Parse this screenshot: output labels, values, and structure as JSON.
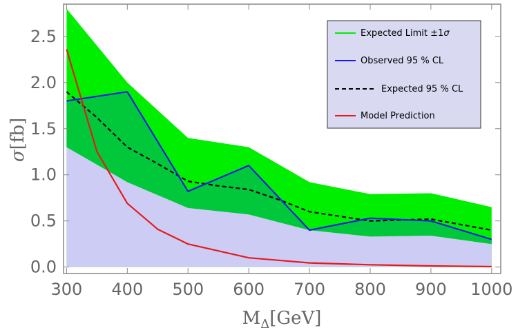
{
  "chart_data": {
    "type": "line",
    "xlabel_main": "M",
    "xlabel_sub": "Δ",
    "xlabel_unit": "[GeV]",
    "ylabel_main": "σ",
    "ylabel_unit": "[fb]",
    "xlim": [
      295,
      1015
    ],
    "ylim": [
      -0.07,
      2.85
    ],
    "x_ticks": [
      300,
      400,
      500,
      600,
      700,
      800,
      900,
      1000
    ],
    "x_tick_labels": [
      "300",
      "400",
      "500",
      "600",
      "700",
      "800",
      "900",
      "1000"
    ],
    "y_ticks": [
      0.0,
      0.5,
      1.0,
      1.5,
      2.0,
      2.5
    ],
    "y_tick_labels": [
      "0.0",
      "0.5",
      "1.0",
      "1.5",
      "2.0",
      "2.5"
    ],
    "legend_position": "top-right",
    "band": {
      "name": "Expected Limit ±1σ",
      "label_text": "Expected Limit ±1",
      "label_symbol": "σ",
      "x": [
        300,
        400,
        500,
        600,
        700,
        800,
        900,
        1000
      ],
      "upper": [
        2.8,
        2.0,
        1.4,
        1.3,
        0.92,
        0.79,
        0.8,
        0.65
      ],
      "lower": [
        1.3,
        0.92,
        0.64,
        0.57,
        0.4,
        0.33,
        0.34,
        0.25
      ]
    },
    "series": [
      {
        "name": "Observed 95 % CL",
        "color": "#1a1ae6",
        "style": "solid",
        "x": [
          300,
          400,
          500,
          600,
          700,
          800,
          900,
          1000
        ],
        "y": [
          1.8,
          1.9,
          0.82,
          1.1,
          0.4,
          0.53,
          0.5,
          0.3
        ]
      },
      {
        "name": "Expected 95 % CL",
        "color": "#000000",
        "style": "dashed",
        "x": [
          300,
          350,
          400,
          450,
          500,
          550,
          600,
          650,
          700,
          800,
          900,
          1000
        ],
        "y": [
          1.9,
          1.62,
          1.3,
          1.12,
          0.93,
          0.88,
          0.84,
          0.73,
          0.6,
          0.5,
          0.52,
          0.4
        ]
      },
      {
        "name": "Model Prediction",
        "color": "#e61a1a",
        "style": "solid",
        "x": [
          300,
          350,
          400,
          450,
          500,
          600,
          700,
          800,
          900,
          1000
        ],
        "y": [
          2.36,
          1.25,
          0.69,
          0.41,
          0.25,
          0.1,
          0.045,
          0.025,
          0.012,
          0.005
        ]
      }
    ],
    "colors": {
      "band_fill": "#00ee00",
      "overlap_fill": "#00c83a",
      "exclusion_fill": "#ccccf5",
      "frame": "#888888",
      "legend_bg": "#d9d9f2"
    }
  }
}
